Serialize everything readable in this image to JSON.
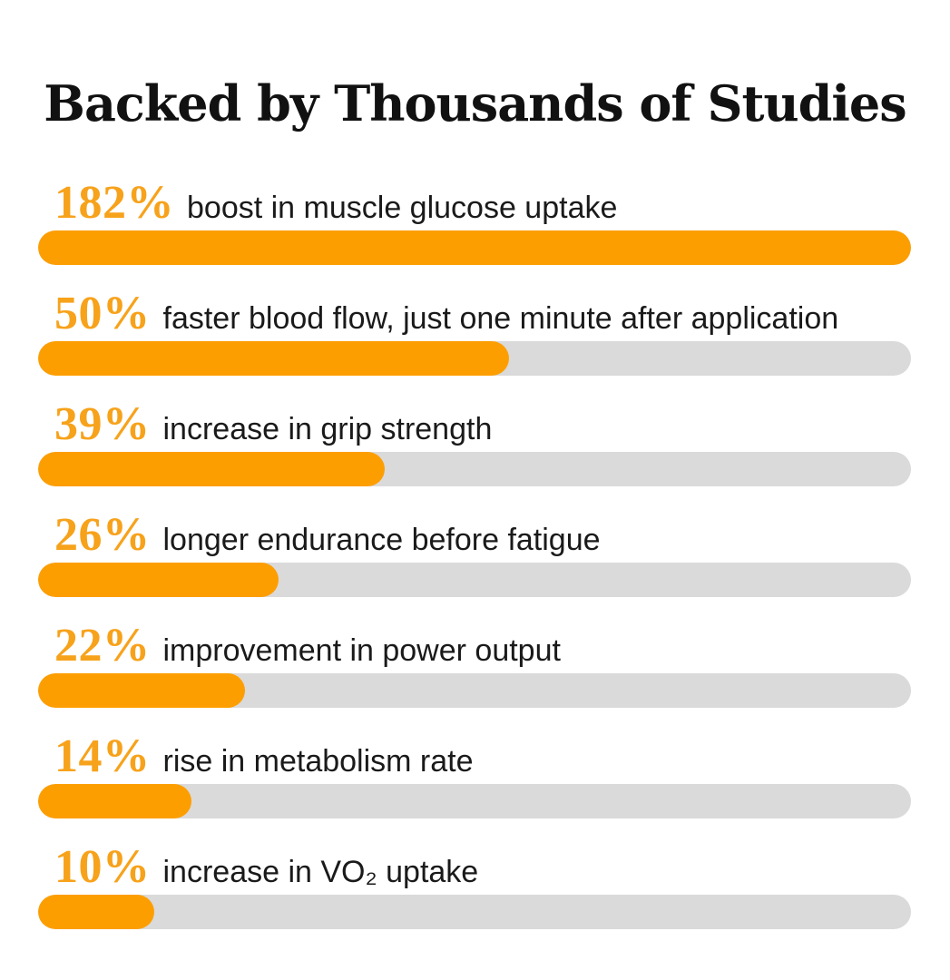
{
  "title": "Backed by Thousands of Studies",
  "colors": {
    "accent": "#fd9e00",
    "value_text": "#f7a21b",
    "track": "#dadada",
    "label_text": "#1a1a1a"
  },
  "chart_data": {
    "type": "bar",
    "orientation": "horizontal",
    "title": "Backed by Thousands of Studies",
    "items": [
      {
        "value_label": "182%",
        "label": "boost in muscle glucose uptake",
        "fill": 1.0
      },
      {
        "value_label": "50%",
        "label": "faster blood flow, just one minute after application",
        "fill": 0.54
      },
      {
        "value_label": "39%",
        "label": "increase in grip strength",
        "fill": 0.397
      },
      {
        "value_label": "26%",
        "label": "longer endurance before fatigue",
        "fill": 0.275
      },
      {
        "value_label": "22%",
        "label": "improvement in power output",
        "fill": 0.237
      },
      {
        "value_label": "14%",
        "label": "rise in metabolism rate",
        "fill": 0.176
      },
      {
        "value_label": "10%",
        "label": "increase in VO₂ uptake",
        "fill": 0.133
      }
    ]
  }
}
